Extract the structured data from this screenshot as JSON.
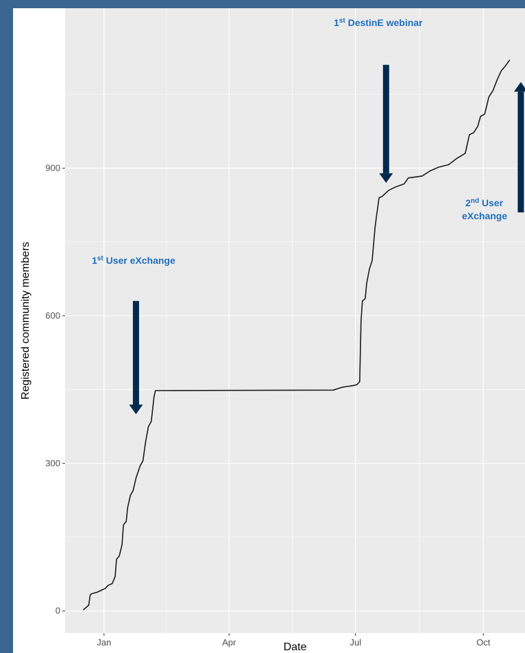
{
  "colors": {
    "page_border": "#3a6790",
    "panel": "#ebebeb",
    "grid": "#ffffff",
    "line": "#1a1a1a",
    "arrow": "#002a4d",
    "annotation_text": "#1f6fbf"
  },
  "chart_data": {
    "type": "line",
    "title": "",
    "xlabel": "Date",
    "ylabel": "Registered community members",
    "x_axis_type": "date",
    "xlim": [
      "2022-12-04",
      "2023-10-31"
    ],
    "ylim": [
      -45,
      1225
    ],
    "x_ticks": [
      {
        "date": "2023-01-01",
        "label": "Jan"
      },
      {
        "date": "2023-04-01",
        "label": "Apr"
      },
      {
        "date": "2023-07-01",
        "label": "Jul"
      },
      {
        "date": "2023-10-01",
        "label": "Oct"
      }
    ],
    "y_ticks": [
      0,
      300,
      600,
      900
    ],
    "grid": true,
    "series": [
      {
        "points": [
          [
            "2022-12-17",
            2
          ],
          [
            "2022-12-21",
            12
          ],
          [
            "2022-12-22",
            32
          ],
          [
            "2022-12-23",
            35
          ],
          [
            "2022-12-27",
            38
          ],
          [
            "2022-12-30",
            42
          ],
          [
            "2023-01-02",
            46
          ],
          [
            "2023-01-04",
            52
          ],
          [
            "2023-01-07",
            56
          ],
          [
            "2023-01-09",
            70
          ],
          [
            "2023-01-10",
            105
          ],
          [
            "2023-01-12",
            112
          ],
          [
            "2023-01-14",
            135
          ],
          [
            "2023-01-15",
            175
          ],
          [
            "2023-01-17",
            182
          ],
          [
            "2023-01-18",
            210
          ],
          [
            "2023-01-20",
            235
          ],
          [
            "2023-01-22",
            245
          ],
          [
            "2023-01-24",
            270
          ],
          [
            "2023-01-27",
            295
          ],
          [
            "2023-01-29",
            305
          ],
          [
            "2023-01-31",
            345
          ],
          [
            "2023-02-02",
            375
          ],
          [
            "2023-02-04",
            385
          ],
          [
            "2023-02-05",
            410
          ],
          [
            "2023-02-06",
            435
          ],
          [
            "2023-02-07",
            448
          ],
          [
            "2023-06-15",
            449
          ],
          [
            "2023-06-22",
            455
          ],
          [
            "2023-06-29",
            458
          ],
          [
            "2023-07-02",
            460
          ],
          [
            "2023-07-04",
            466
          ],
          [
            "2023-07-05",
            590
          ],
          [
            "2023-07-06",
            630
          ],
          [
            "2023-07-08",
            635
          ],
          [
            "2023-07-09",
            665
          ],
          [
            "2023-07-11",
            695
          ],
          [
            "2023-07-13",
            712
          ],
          [
            "2023-07-15",
            778
          ],
          [
            "2023-07-16",
            800
          ],
          [
            "2023-07-18",
            840
          ],
          [
            "2023-07-20",
            842
          ],
          [
            "2023-07-25",
            855
          ],
          [
            "2023-07-30",
            862
          ],
          [
            "2023-08-05",
            868
          ],
          [
            "2023-08-08",
            880
          ],
          [
            "2023-08-18",
            884
          ],
          [
            "2023-08-24",
            895
          ],
          [
            "2023-08-30",
            902
          ],
          [
            "2023-09-06",
            907
          ],
          [
            "2023-09-12",
            920
          ],
          [
            "2023-09-18",
            930
          ],
          [
            "2023-09-21",
            968
          ],
          [
            "2023-09-24",
            972
          ],
          [
            "2023-09-27",
            985
          ],
          [
            "2023-09-29",
            1005
          ],
          [
            "2023-10-02",
            1010
          ],
          [
            "2023-10-05",
            1045
          ],
          [
            "2023-10-08",
            1058
          ],
          [
            "2023-10-11",
            1080
          ],
          [
            "2023-10-14",
            1098
          ],
          [
            "2023-10-17",
            1108
          ],
          [
            "2023-10-20",
            1120
          ]
        ]
      }
    ],
    "annotations": [
      {
        "id": "a1",
        "num": "1",
        "sup": "st",
        "lines": [
          "User eXchange"
        ],
        "date": "2023-01-24",
        "y_from": 630,
        "y_to": 400,
        "direction": "down"
      },
      {
        "id": "a2",
        "num": "1",
        "sup": "st",
        "lines": [
          "DestinE webinar"
        ],
        "date": "2023-07-23",
        "y_from": 1110,
        "y_to": 870,
        "direction": "down"
      },
      {
        "id": "a3",
        "num": "2",
        "sup": "nd",
        "lines": [
          "User",
          "eXchange"
        ],
        "date": "2023-10-28",
        "y_from": 810,
        "y_to": 1075,
        "direction": "up"
      }
    ]
  }
}
